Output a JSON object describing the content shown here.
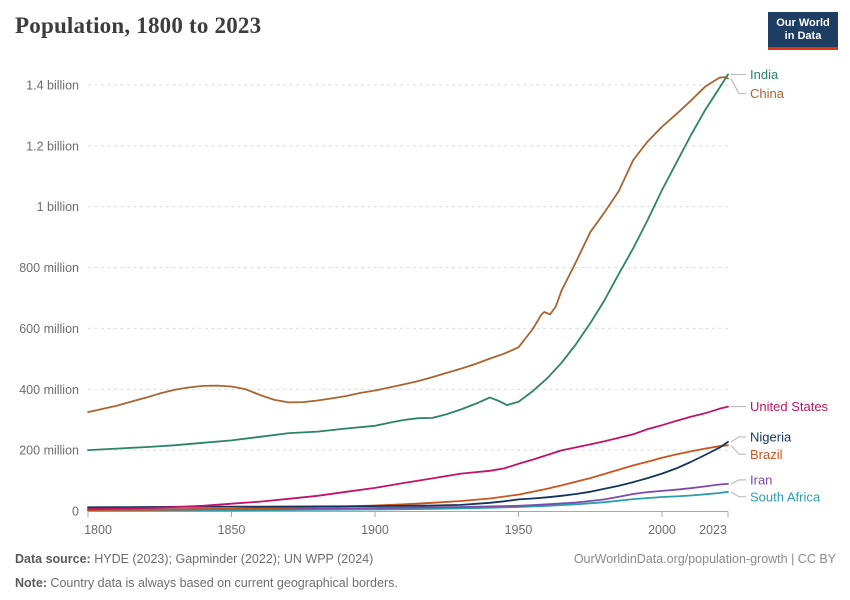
{
  "header": {
    "title": "Population, 1800 to 2023",
    "logo": {
      "line1": "Our World",
      "line2": "in Data"
    }
  },
  "chart_data": {
    "type": "line",
    "title": "Population, 1800 to 2023",
    "xlabel": "",
    "ylabel": "",
    "unit": "people (millions)",
    "x_range": [
      1800,
      2023
    ],
    "y_range_millions": [
      0,
      1400
    ],
    "grid": true,
    "legend_position": "right-of-lines",
    "y_ticks": [
      {
        "value": 0,
        "label": "0"
      },
      {
        "value": 200,
        "label": "200 million"
      },
      {
        "value": 400,
        "label": "400 million"
      },
      {
        "value": 600,
        "label": "600 million"
      },
      {
        "value": 800,
        "label": "800 million"
      },
      {
        "value": 1000,
        "label": "1 billion"
      },
      {
        "value": 1200,
        "label": "1.2 billion"
      },
      {
        "value": 1400,
        "label": "1.4 billion"
      }
    ],
    "x_ticks": [
      {
        "year": 1800,
        "label": "1800",
        "label_dx": 10
      },
      {
        "year": 1850,
        "label": "1850",
        "label_dx": 0
      },
      {
        "year": 1900,
        "label": "1900",
        "label_dx": 0
      },
      {
        "year": 1950,
        "label": "1950",
        "label_dx": 0
      },
      {
        "year": 2000,
        "label": "2000",
        "label_dx": 0
      },
      {
        "year": 2023,
        "label": "2023",
        "label_dx": -15
      }
    ],
    "series": [
      {
        "name": "India",
        "color": "#2C8465",
        "label_dy": 0,
        "points": [
          [
            1800,
            200
          ],
          [
            1810,
            205
          ],
          [
            1820,
            210
          ],
          [
            1830,
            216
          ],
          [
            1840,
            224
          ],
          [
            1850,
            232
          ],
          [
            1860,
            244
          ],
          [
            1870,
            256
          ],
          [
            1880,
            261
          ],
          [
            1890,
            271
          ],
          [
            1900,
            280
          ],
          [
            1905,
            290
          ],
          [
            1910,
            299
          ],
          [
            1915,
            305
          ],
          [
            1920,
            306
          ],
          [
            1925,
            318
          ],
          [
            1930,
            334
          ],
          [
            1935,
            352
          ],
          [
            1940,
            373
          ],
          [
            1943,
            362
          ],
          [
            1946,
            348
          ],
          [
            1950,
            359
          ],
          [
            1955,
            394
          ],
          [
            1960,
            436
          ],
          [
            1965,
            487
          ],
          [
            1970,
            548
          ],
          [
            1975,
            617
          ],
          [
            1980,
            693
          ],
          [
            1985,
            780
          ],
          [
            1990,
            864
          ],
          [
            1995,
            956
          ],
          [
            2000,
            1055
          ],
          [
            2005,
            1144
          ],
          [
            2010,
            1234
          ],
          [
            2015,
            1317
          ],
          [
            2020,
            1390
          ],
          [
            2023,
            1435
          ]
        ]
      },
      {
        "name": "China",
        "color": "#A8652F",
        "label_dy": 15,
        "points": [
          [
            1800,
            325
          ],
          [
            1810,
            346
          ],
          [
            1820,
            372
          ],
          [
            1825,
            386
          ],
          [
            1830,
            398
          ],
          [
            1835,
            406
          ],
          [
            1840,
            411
          ],
          [
            1845,
            412
          ],
          [
            1850,
            409
          ],
          [
            1855,
            400
          ],
          [
            1860,
            381
          ],
          [
            1865,
            365
          ],
          [
            1870,
            357
          ],
          [
            1875,
            358
          ],
          [
            1880,
            363
          ],
          [
            1885,
            370
          ],
          [
            1890,
            378
          ],
          [
            1895,
            388
          ],
          [
            1900,
            396
          ],
          [
            1905,
            406
          ],
          [
            1910,
            416
          ],
          [
            1915,
            427
          ],
          [
            1920,
            440
          ],
          [
            1925,
            454
          ],
          [
            1930,
            468
          ],
          [
            1935,
            483
          ],
          [
            1940,
            501
          ],
          [
            1945,
            517
          ],
          [
            1950,
            538
          ],
          [
            1955,
            598
          ],
          [
            1958,
            646
          ],
          [
            1959,
            654
          ],
          [
            1961,
            646
          ],
          [
            1963,
            672
          ],
          [
            1965,
            724
          ],
          [
            1970,
            818
          ],
          [
            1975,
            916
          ],
          [
            1980,
            982
          ],
          [
            1985,
            1052
          ],
          [
            1990,
            1154
          ],
          [
            1995,
            1214
          ],
          [
            2000,
            1263
          ],
          [
            2005,
            1304
          ],
          [
            2010,
            1348
          ],
          [
            2015,
            1394
          ],
          [
            2018,
            1412
          ],
          [
            2020,
            1424
          ],
          [
            2022,
            1426
          ],
          [
            2023,
            1421
          ]
        ]
      },
      {
        "name": "United States",
        "color": "#BE1566",
        "label_dy": 0,
        "points": [
          [
            1800,
            6
          ],
          [
            1810,
            8
          ],
          [
            1820,
            10
          ],
          [
            1830,
            13
          ],
          [
            1840,
            17
          ],
          [
            1850,
            24
          ],
          [
            1860,
            31
          ],
          [
            1870,
            40
          ],
          [
            1880,
            50
          ],
          [
            1890,
            63
          ],
          [
            1900,
            76
          ],
          [
            1910,
            92
          ],
          [
            1920,
            107
          ],
          [
            1930,
            123
          ],
          [
            1940,
            132
          ],
          [
            1945,
            140
          ],
          [
            1950,
            155
          ],
          [
            1955,
            169
          ],
          [
            1960,
            184
          ],
          [
            1965,
            199
          ],
          [
            1970,
            209
          ],
          [
            1975,
            219
          ],
          [
            1980,
            229
          ],
          [
            1985,
            241
          ],
          [
            1990,
            252
          ],
          [
            1995,
            269
          ],
          [
            2000,
            282
          ],
          [
            2005,
            296
          ],
          [
            2010,
            310
          ],
          [
            2015,
            321
          ],
          [
            2020,
            336
          ],
          [
            2023,
            343
          ]
        ]
      },
      {
        "name": "Nigeria",
        "color": "#16345E",
        "label_dy": -5,
        "points": [
          [
            1800,
            12
          ],
          [
            1820,
            13
          ],
          [
            1840,
            14
          ],
          [
            1860,
            14
          ],
          [
            1880,
            15
          ],
          [
            1900,
            16
          ],
          [
            1910,
            17
          ],
          [
            1920,
            18
          ],
          [
            1930,
            20
          ],
          [
            1940,
            27
          ],
          [
            1945,
            32
          ],
          [
            1950,
            38
          ],
          [
            1955,
            41
          ],
          [
            1960,
            45
          ],
          [
            1965,
            50
          ],
          [
            1970,
            56
          ],
          [
            1975,
            63
          ],
          [
            1980,
            73
          ],
          [
            1985,
            83
          ],
          [
            1990,
            95
          ],
          [
            1995,
            108
          ],
          [
            2000,
            123
          ],
          [
            2005,
            140
          ],
          [
            2010,
            161
          ],
          [
            2015,
            184
          ],
          [
            2020,
            208
          ],
          [
            2023,
            227
          ]
        ]
      },
      {
        "name": "Brazil",
        "color": "#C9541C",
        "label_dy": 9,
        "points": [
          [
            1800,
            3
          ],
          [
            1820,
            4
          ],
          [
            1840,
            6
          ],
          [
            1850,
            7
          ],
          [
            1860,
            9
          ],
          [
            1870,
            11
          ],
          [
            1880,
            13
          ],
          [
            1890,
            15
          ],
          [
            1900,
            18
          ],
          [
            1910,
            22
          ],
          [
            1920,
            27
          ],
          [
            1930,
            33
          ],
          [
            1940,
            41
          ],
          [
            1950,
            54
          ],
          [
            1955,
            63
          ],
          [
            1960,
            73
          ],
          [
            1965,
            84
          ],
          [
            1970,
            96
          ],
          [
            1975,
            108
          ],
          [
            1980,
            122
          ],
          [
            1985,
            136
          ],
          [
            1990,
            150
          ],
          [
            1995,
            162
          ],
          [
            2000,
            175
          ],
          [
            2005,
            186
          ],
          [
            2010,
            196
          ],
          [
            2015,
            205
          ],
          [
            2020,
            213
          ],
          [
            2023,
            216
          ]
        ]
      },
      {
        "name": "Iran",
        "color": "#7C4DA8",
        "label_dy": -4,
        "points": [
          [
            1800,
            6
          ],
          [
            1850,
            7
          ],
          [
            1880,
            8
          ],
          [
            1900,
            10
          ],
          [
            1910,
            11
          ],
          [
            1920,
            12
          ],
          [
            1930,
            13
          ],
          [
            1940,
            15
          ],
          [
            1950,
            17
          ],
          [
            1955,
            19
          ],
          [
            1960,
            22
          ],
          [
            1965,
            25
          ],
          [
            1970,
            28
          ],
          [
            1975,
            33
          ],
          [
            1980,
            38
          ],
          [
            1985,
            47
          ],
          [
            1990,
            56
          ],
          [
            1995,
            62
          ],
          [
            2000,
            66
          ],
          [
            2005,
            70
          ],
          [
            2010,
            75
          ],
          [
            2015,
            81
          ],
          [
            2020,
            87
          ],
          [
            2023,
            89
          ]
        ]
      },
      {
        "name": "South Africa",
        "color": "#2B9EAC",
        "label_dy": 5,
        "points": [
          [
            1800,
            1.5
          ],
          [
            1850,
            2
          ],
          [
            1880,
            3.5
          ],
          [
            1900,
            5
          ],
          [
            1910,
            6
          ],
          [
            1920,
            7
          ],
          [
            1930,
            8.5
          ],
          [
            1940,
            11
          ],
          [
            1950,
            13
          ],
          [
            1960,
            17
          ],
          [
            1970,
            22
          ],
          [
            1980,
            29
          ],
          [
            1990,
            39
          ],
          [
            2000,
            46
          ],
          [
            2005,
            48
          ],
          [
            2010,
            51
          ],
          [
            2015,
            55
          ],
          [
            2020,
            59
          ],
          [
            2023,
            63
          ]
        ]
      }
    ]
  },
  "footer": {
    "source_label": "Data source:",
    "source_text": " HYDE (2023); Gapminder (2022); UN WPP (2024)",
    "note_label": "Note:",
    "note_text": " Country data is always based on current geographical borders.",
    "credit": "OurWorldinData.org/population-growth | CC BY"
  }
}
